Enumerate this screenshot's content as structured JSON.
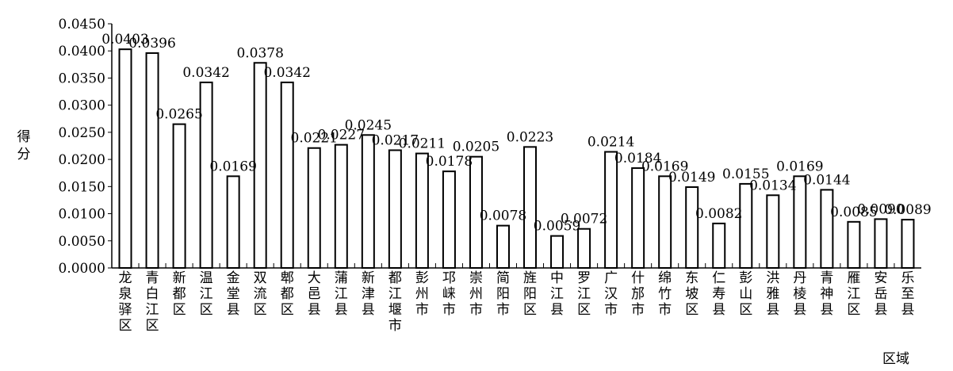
{
  "chart_data": {
    "type": "bar",
    "ylabel": "得分",
    "xlabel": "区域",
    "ylim": [
      0,
      0.045
    ],
    "yticks": [
      "0.0000",
      "0.0050",
      "0.0100",
      "0.0150",
      "0.0200",
      "0.0250",
      "0.0300",
      "0.0350",
      "0.0400",
      "0.0450"
    ],
    "grid": false,
    "categories": [
      "龙泉驿区",
      "青白江区",
      "新都区",
      "温江区",
      "金堂县",
      "双流区",
      "郫都区",
      "大邑县",
      "蒲江县",
      "新津县",
      "都江堰市",
      "彭州市",
      "邛崃市",
      "崇州市",
      "简阳市",
      "旌阳区",
      "中江县",
      "罗江区",
      "广汉市",
      "什邡市",
      "绵竹市",
      "东坡区",
      "仁寿县",
      "彭山区",
      "洪雅县",
      "丹棱县",
      "青神县",
      "雁江区",
      "安岳县",
      "乐至县"
    ],
    "values": [
      0.0403,
      0.0396,
      0.0265,
      0.0342,
      0.0169,
      0.0378,
      0.0342,
      0.0221,
      0.0227,
      0.0245,
      0.0217,
      0.0211,
      0.0178,
      0.0205,
      0.0078,
      0.0223,
      0.0059,
      0.0072,
      0.0214,
      0.0184,
      0.0169,
      0.0149,
      0.0082,
      0.0155,
      0.0134,
      0.0169,
      0.0144,
      0.0085,
      0.009,
      0.0089
    ],
    "data_labels": [
      "0.0403",
      "0.0396",
      "0.0265",
      "0.0342",
      "0.0169",
      "0.0378",
      "0.0342",
      "0.0221",
      "0.0227",
      "0.0245",
      "0.0217",
      "0.0211",
      "0.0178",
      "0.0205",
      "0.0078",
      "0.0223",
      "0.0059",
      "0.0072",
      "0.0214",
      "0.0184",
      "0.0169",
      "0.0149",
      "0.0082",
      "0.0155",
      "0.0134",
      "0.0169",
      "0.0144",
      "0.0085",
      "0.0090",
      "0.0089"
    ],
    "bar_fill": "#ffffff",
    "bar_stroke": "#000000"
  }
}
